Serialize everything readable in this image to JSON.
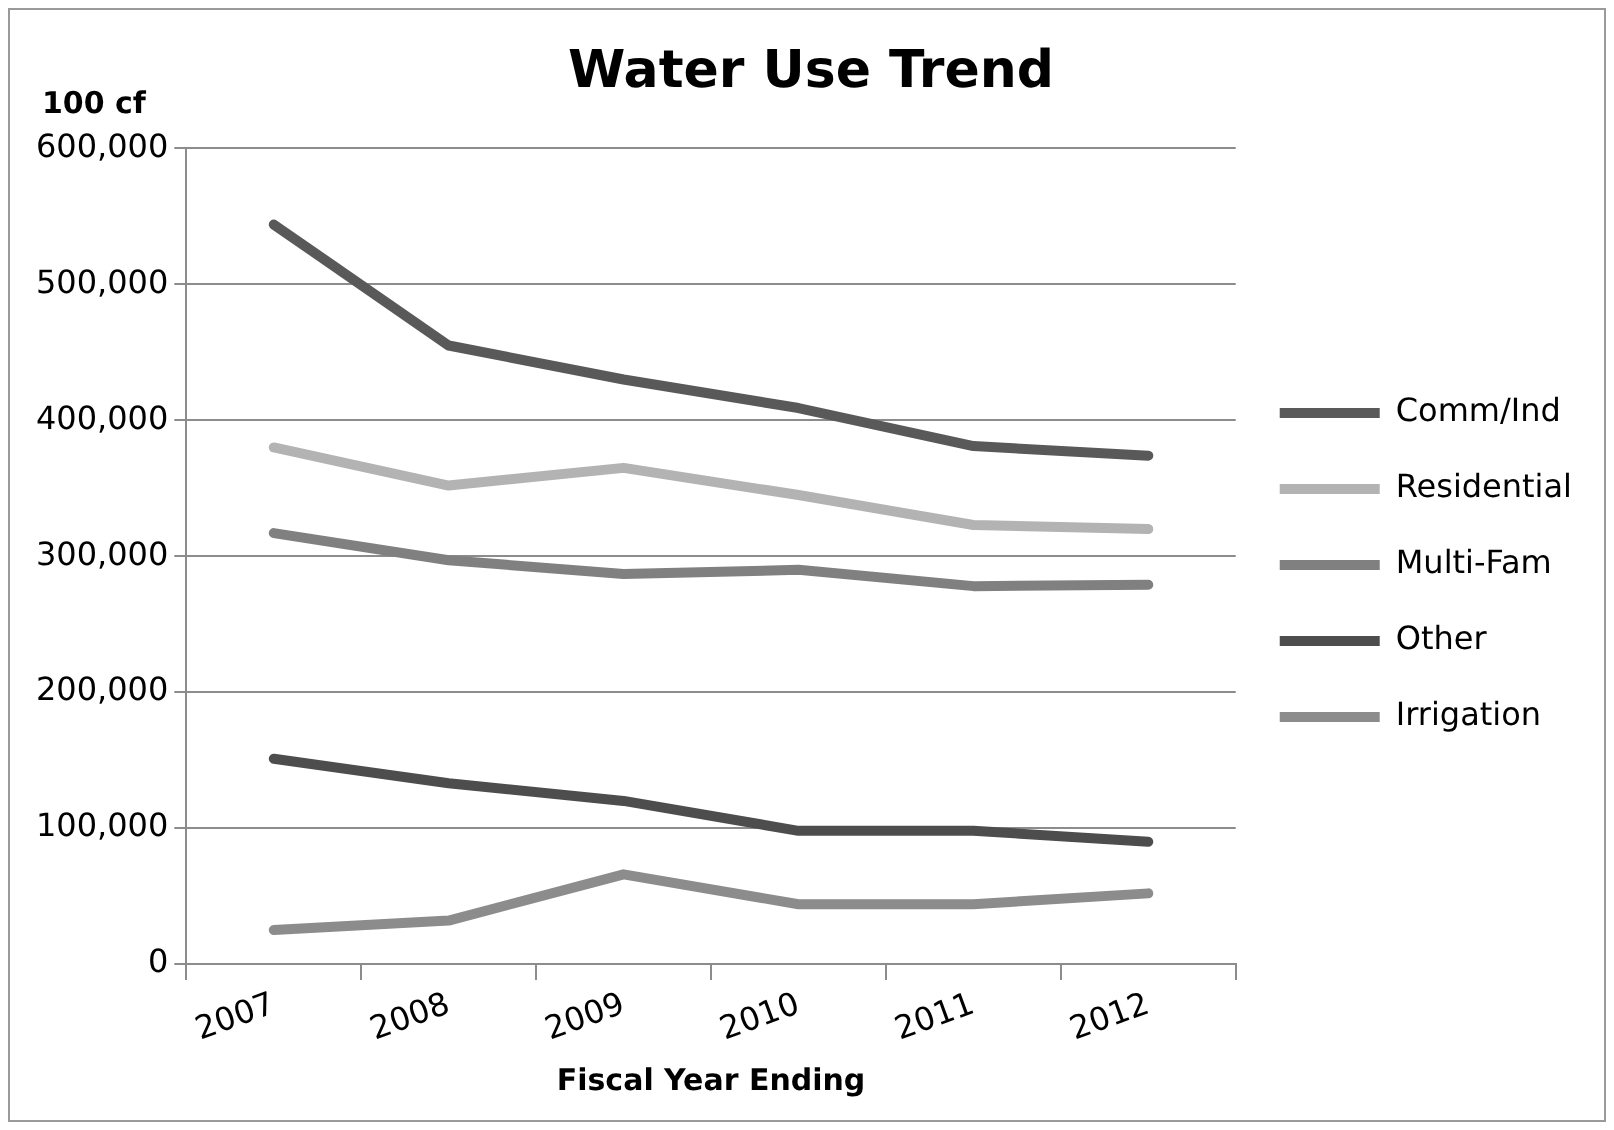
{
  "chart_data": {
    "type": "line",
    "title": "Water Use Trend",
    "xlabel": "Fiscal Year Ending",
    "ylabel": "100 cf",
    "categories": [
      "2007",
      "2008",
      "2009",
      "2010",
      "2011",
      "2012"
    ],
    "series": [
      {
        "name": "Comm/Ind",
        "color": "#595959",
        "values": [
          544000,
          455000,
          430000,
          409000,
          381000,
          374000
        ]
      },
      {
        "name": "Residential",
        "color": "#b3b3b3",
        "values": [
          380000,
          352000,
          365000,
          345000,
          323000,
          320000
        ]
      },
      {
        "name": "Multi-Fam",
        "color": "#808080",
        "values": [
          317000,
          297000,
          287000,
          290000,
          278000,
          279000
        ]
      },
      {
        "name": "Other",
        "color": "#4d4d4d",
        "values": [
          151000,
          133000,
          120000,
          98000,
          98000,
          90000
        ]
      },
      {
        "name": "Irrigation",
        "color": "#8c8c8c",
        "values": [
          25000,
          32000,
          66000,
          44000,
          44000,
          52000
        ]
      }
    ],
    "ylim": [
      0,
      600000
    ],
    "yticks": [
      0,
      {
        "value": 100000,
        "label": "100,000"
      },
      {
        "value": 200000,
        "label": "200,000"
      },
      {
        "value": 300000,
        "label": "300,000"
      },
      {
        "value": 400000,
        "label": "400,000"
      },
      {
        "value": 500000,
        "label": "500,000"
      },
      {
        "value": 600000,
        "label": "600,000"
      }
    ],
    "grid": "y",
    "legend": "right",
    "marker": "none",
    "line_style": "solid"
  }
}
